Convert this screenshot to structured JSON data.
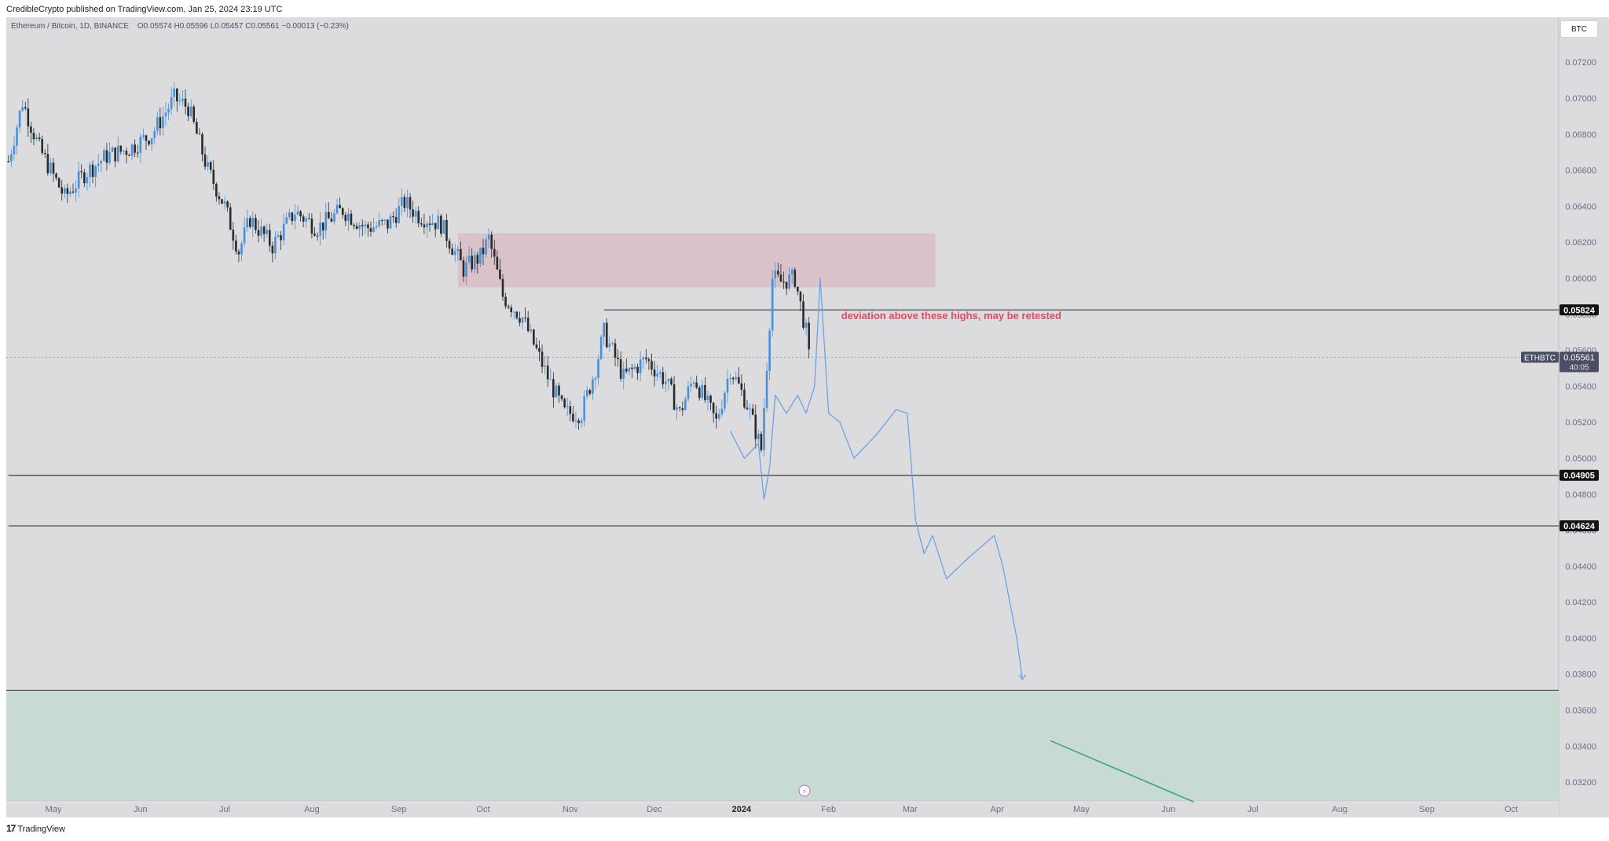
{
  "header": {
    "published": "CredibleCrypto published on TradingView.com, Jan 25, 2024 23:19 UTC"
  },
  "symbol": {
    "name": "Ethereum / Bitcoin, 1D, BINANCE",
    "o": "O0.05574",
    "h": "H0.05596",
    "l": "L0.05457",
    "c": "C0.05561",
    "change": "−0.00013 (−0.23%)"
  },
  "currency_button": "BTC",
  "footer": {
    "brand": "TradingView"
  },
  "colors": {
    "background": "#dcdcdf",
    "up_candle": "#4a90d9",
    "down_candle": "#2b2b2b",
    "resistance_zone": "#d9c3c8",
    "support_zone": "#c8dbd2",
    "annotation": "#e8475f",
    "projection": "#6fa1e8",
    "arrow_green": "#3aa57a"
  },
  "chart_data": {
    "type": "candlestick",
    "symbol": "ETHBTC",
    "ylim": [
      0.031,
      0.0745
    ],
    "y_ticks": [
      "0.07200",
      "0.07000",
      "0.06800",
      "0.06600",
      "0.06400",
      "0.06200",
      "0.06000",
      "0.05800",
      "0.05600",
      "0.05400",
      "0.05200",
      "0.05000",
      "0.04800",
      "0.04600",
      "0.04400",
      "0.04200",
      "0.04000",
      "0.03800",
      "0.03600",
      "0.03400",
      "0.03200"
    ],
    "x_labels": [
      {
        "label": "May",
        "date": "2023-05-01",
        "bold": false
      },
      {
        "label": "Jun",
        "date": "2023-06-01",
        "bold": false
      },
      {
        "label": "Jul",
        "date": "2023-07-01",
        "bold": false
      },
      {
        "label": "Aug",
        "date": "2023-08-01",
        "bold": false
      },
      {
        "label": "Sep",
        "date": "2023-09-01",
        "bold": false
      },
      {
        "label": "Oct",
        "date": "2023-10-01",
        "bold": false
      },
      {
        "label": "Nov",
        "date": "2023-11-01",
        "bold": false
      },
      {
        "label": "Dec",
        "date": "2023-12-01",
        "bold": false
      },
      {
        "label": "2024",
        "date": "2024-01-01",
        "bold": true
      },
      {
        "label": "Feb",
        "date": "2024-02-01",
        "bold": false
      },
      {
        "label": "Mar",
        "date": "2024-03-01",
        "bold": false
      },
      {
        "label": "Apr",
        "date": "2024-04-01",
        "bold": false
      },
      {
        "label": "May",
        "date": "2024-05-01",
        "bold": false
      },
      {
        "label": "Jun",
        "date": "2024-06-01",
        "bold": false
      },
      {
        "label": "Jul",
        "date": "2024-07-01",
        "bold": false
      },
      {
        "label": "Aug",
        "date": "2024-08-01",
        "bold": false
      },
      {
        "label": "Sep",
        "date": "2024-09-01",
        "bold": false
      },
      {
        "label": "Oct",
        "date": "2024-10-01",
        "bold": false
      }
    ],
    "price_path": [
      {
        "date": "2023-04-15",
        "price": 0.0665
      },
      {
        "date": "2023-04-20",
        "price": 0.0698
      },
      {
        "date": "2023-04-26",
        "price": 0.0672
      },
      {
        "date": "2023-05-05",
        "price": 0.0645
      },
      {
        "date": "2023-05-12",
        "price": 0.0658
      },
      {
        "date": "2023-05-20",
        "price": 0.0668
      },
      {
        "date": "2023-05-28",
        "price": 0.0672
      },
      {
        "date": "2023-06-05",
        "price": 0.068
      },
      {
        "date": "2023-06-13",
        "price": 0.07
      },
      {
        "date": "2023-06-18",
        "price": 0.0695
      },
      {
        "date": "2023-06-25",
        "price": 0.066
      },
      {
        "date": "2023-07-01",
        "price": 0.064
      },
      {
        "date": "2023-07-06",
        "price": 0.0615
      },
      {
        "date": "2023-07-10",
        "price": 0.0633
      },
      {
        "date": "2023-07-18",
        "price": 0.0618
      },
      {
        "date": "2023-07-26",
        "price": 0.0637
      },
      {
        "date": "2023-08-03",
        "price": 0.0628
      },
      {
        "date": "2023-08-12",
        "price": 0.0638
      },
      {
        "date": "2023-08-20",
        "price": 0.0628
      },
      {
        "date": "2023-08-28",
        "price": 0.063
      },
      {
        "date": "2023-09-03",
        "price": 0.0642
      },
      {
        "date": "2023-09-08",
        "price": 0.0635
      },
      {
        "date": "2023-09-16",
        "price": 0.063
      },
      {
        "date": "2023-09-24",
        "price": 0.0605
      },
      {
        "date": "2023-09-30",
        "price": 0.0612
      },
      {
        "date": "2023-10-03",
        "price": 0.0622
      },
      {
        "date": "2023-10-08",
        "price": 0.059
      },
      {
        "date": "2023-10-15",
        "price": 0.0578
      },
      {
        "date": "2023-10-24",
        "price": 0.0545
      },
      {
        "date": "2023-10-30",
        "price": 0.0525
      },
      {
        "date": "2023-11-05",
        "price": 0.0525
      },
      {
        "date": "2023-11-10",
        "price": 0.055
      },
      {
        "date": "2023-11-13",
        "price": 0.057
      },
      {
        "date": "2023-11-20",
        "price": 0.0545
      },
      {
        "date": "2023-11-28",
        "price": 0.0555
      },
      {
        "date": "2023-12-05",
        "price": 0.0543
      },
      {
        "date": "2023-12-10",
        "price": 0.0525
      },
      {
        "date": "2023-12-15",
        "price": 0.0545
      },
      {
        "date": "2023-12-23",
        "price": 0.052
      },
      {
        "date": "2023-12-28",
        "price": 0.055
      },
      {
        "date": "2024-01-03",
        "price": 0.053
      },
      {
        "date": "2024-01-08",
        "price": 0.0505
      },
      {
        "date": "2024-01-12",
        "price": 0.06
      },
      {
        "date": "2024-01-15",
        "price": 0.0598
      },
      {
        "date": "2024-01-20",
        "price": 0.06
      },
      {
        "date": "2024-01-24",
        "price": 0.057
      },
      {
        "date": "2024-01-25",
        "price": 0.05561
      }
    ],
    "resistance_zone": {
      "from": "2023-09-22",
      "to": "2024-03-10",
      "low": 0.0595,
      "high": 0.0625
    },
    "support_zone": {
      "from": "2023-04-15",
      "to": "2024-10-31",
      "low": 0.031,
      "high": 0.0371
    },
    "levels": [
      {
        "value": 0.05824,
        "label": "0.05824",
        "from": "2023-11-13"
      },
      {
        "value": 0.04905,
        "label": "0.04905",
        "from": "2023-04-15"
      },
      {
        "value": 0.04624,
        "label": "0.04624",
        "from": "2023-04-15"
      }
    ],
    "current_price": {
      "value": 0.05561,
      "ticker": "ETHBTC",
      "label": "0.05561",
      "countdown": "40:05"
    },
    "annotation": {
      "text": "deviation above these highs, may be retested",
      "date": "2024-02-01",
      "price": 0.0579
    },
    "projection": [
      {
        "date": "2023-12-28",
        "price": 0.0515
      },
      {
        "date": "2024-01-02",
        "price": 0.05
      },
      {
        "date": "2024-01-07",
        "price": 0.0508
      },
      {
        "date": "2024-01-09",
        "price": 0.0477
      },
      {
        "date": "2024-01-11",
        "price": 0.0495
      },
      {
        "date": "2024-01-13",
        "price": 0.0535
      },
      {
        "date": "2024-01-17",
        "price": 0.0525
      },
      {
        "date": "2024-01-21",
        "price": 0.0535
      },
      {
        "date": "2024-01-24",
        "price": 0.0525
      },
      {
        "date": "2024-01-27",
        "price": 0.054
      },
      {
        "date": "2024-01-29",
        "price": 0.06
      },
      {
        "date": "2024-02-01",
        "price": 0.0525
      },
      {
        "date": "2024-02-05",
        "price": 0.052
      },
      {
        "date": "2024-02-10",
        "price": 0.05
      },
      {
        "date": "2024-02-18",
        "price": 0.0513
      },
      {
        "date": "2024-02-25",
        "price": 0.0527
      },
      {
        "date": "2024-02-29",
        "price": 0.0525
      },
      {
        "date": "2024-03-03",
        "price": 0.0465
      },
      {
        "date": "2024-03-06",
        "price": 0.0447
      },
      {
        "date": "2024-03-09",
        "price": 0.0457
      },
      {
        "date": "2024-03-14",
        "price": 0.0433
      },
      {
        "date": "2024-03-22",
        "price": 0.0445
      },
      {
        "date": "2024-03-31",
        "price": 0.0457
      },
      {
        "date": "2024-04-03",
        "price": 0.044
      },
      {
        "date": "2024-04-08",
        "price": 0.04
      },
      {
        "date": "2024-04-10",
        "price": 0.0377
      }
    ],
    "green_arrow": [
      {
        "date": "2024-04-20",
        "price": 0.0343
      },
      {
        "date": "2024-06-10",
        "price": 0.0309
      }
    ],
    "grid": false
  }
}
